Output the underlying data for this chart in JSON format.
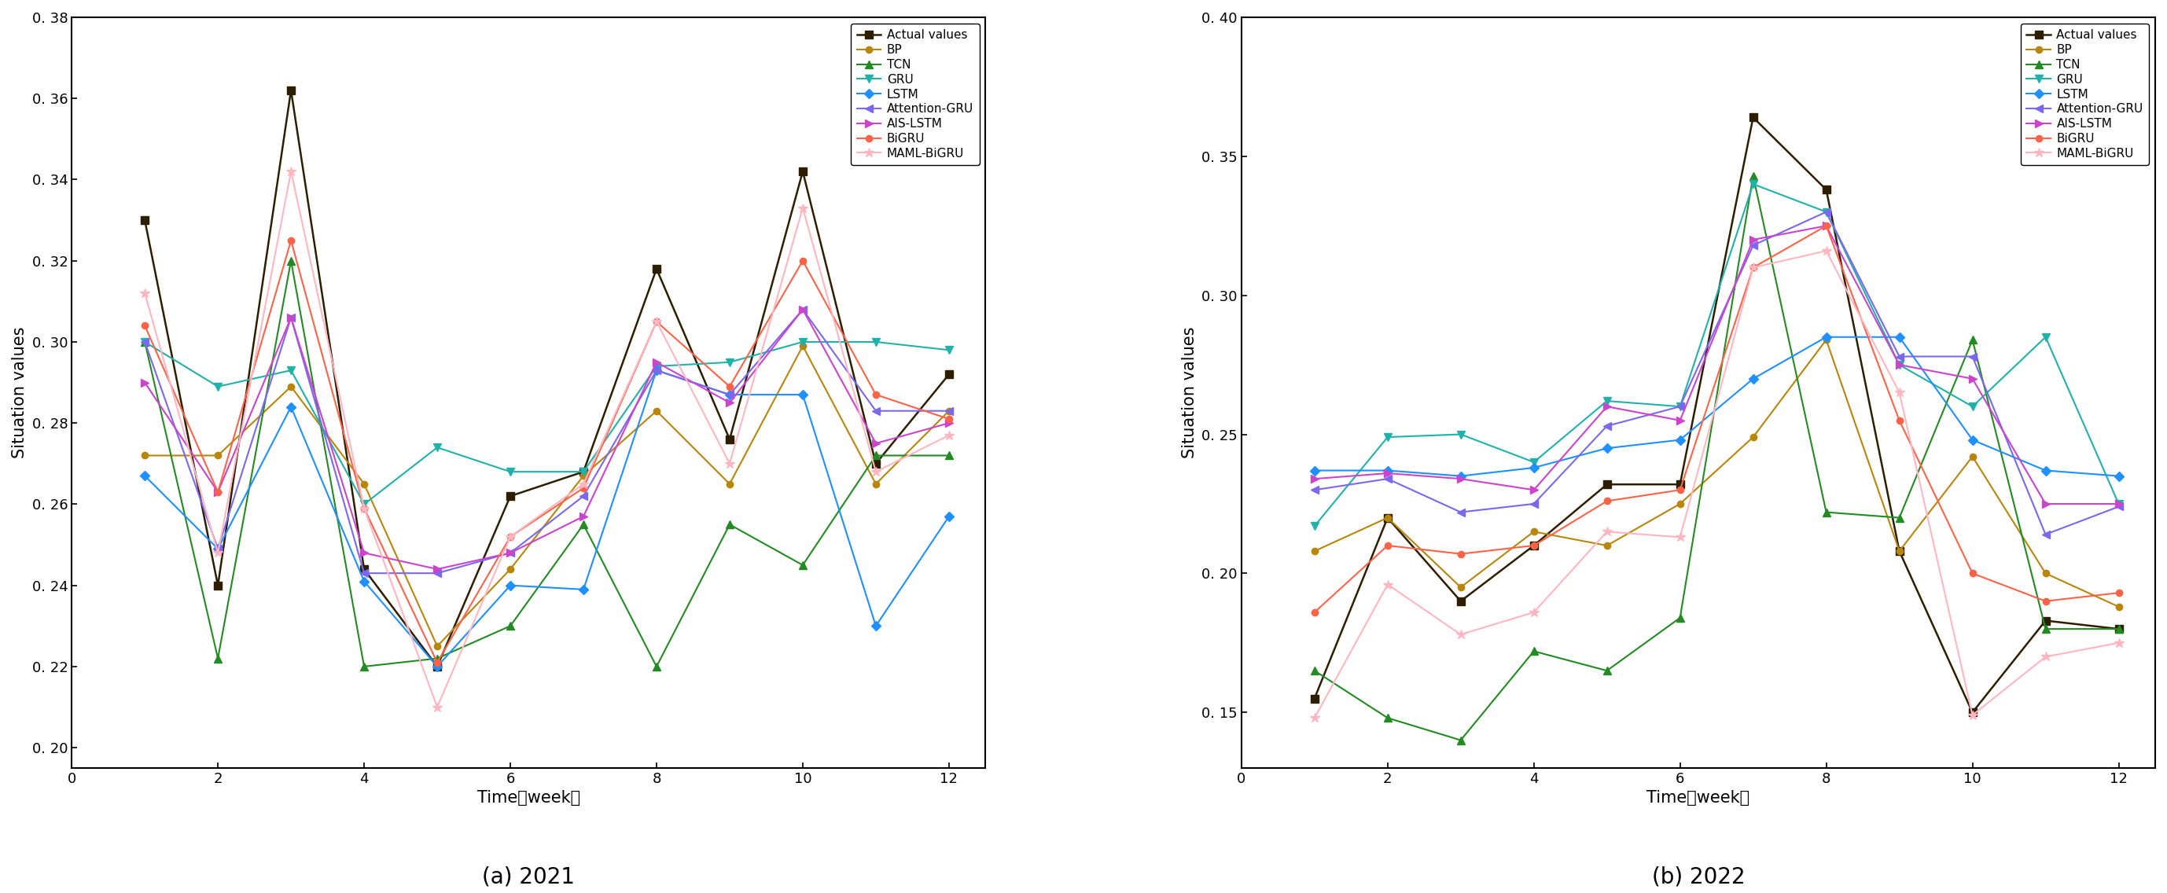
{
  "x": [
    1,
    2,
    3,
    4,
    5,
    6,
    7,
    8,
    9,
    10,
    11,
    12
  ],
  "panel_a": {
    "title": "(a) 2021",
    "ylim": [
      0.195,
      0.38
    ],
    "yticks": [
      0.2,
      0.22,
      0.24,
      0.26,
      0.28,
      0.3,
      0.32,
      0.34,
      0.36,
      0.38
    ],
    "series": {
      "Actual values": [
        0.33,
        0.24,
        0.362,
        0.244,
        0.22,
        0.262,
        0.268,
        0.318,
        0.276,
        0.342,
        0.27,
        0.292
      ],
      "BP": [
        0.272,
        0.272,
        0.289,
        0.265,
        0.225,
        0.244,
        0.267,
        0.283,
        0.265,
        0.299,
        0.265,
        0.283
      ],
      "TCN": [
        0.3,
        0.222,
        0.32,
        0.22,
        0.222,
        0.23,
        0.255,
        0.22,
        0.255,
        0.245,
        0.272,
        0.272
      ],
      "GRU": [
        0.3,
        0.289,
        0.293,
        0.26,
        0.274,
        0.268,
        0.268,
        0.294,
        0.295,
        0.3,
        0.3,
        0.298
      ],
      "LSTM": [
        0.267,
        0.249,
        0.284,
        0.241,
        0.22,
        0.24,
        0.239,
        0.293,
        0.287,
        0.287,
        0.23,
        0.257
      ],
      "Attention-GRU": [
        0.3,
        0.249,
        0.306,
        0.243,
        0.243,
        0.248,
        0.262,
        0.293,
        0.287,
        0.308,
        0.283,
        0.283
      ],
      "AIS-LSTM": [
        0.29,
        0.263,
        0.306,
        0.248,
        0.244,
        0.248,
        0.257,
        0.295,
        0.285,
        0.308,
        0.275,
        0.28
      ],
      "BiGRU": [
        0.304,
        0.263,
        0.325,
        0.259,
        0.221,
        0.252,
        0.264,
        0.305,
        0.289,
        0.32,
        0.287,
        0.281
      ],
      "MAML-BiGRU": [
        0.312,
        0.248,
        0.342,
        0.259,
        0.21,
        0.252,
        0.265,
        0.305,
        0.27,
        0.333,
        0.268,
        0.277
      ]
    }
  },
  "panel_b": {
    "title": "(b) 2022",
    "ylim": [
      0.13,
      0.4
    ],
    "yticks": [
      0.15,
      0.2,
      0.25,
      0.3,
      0.35,
      0.4
    ],
    "series": {
      "Actual values": [
        0.155,
        0.22,
        0.19,
        0.21,
        0.232,
        0.232,
        0.364,
        0.338,
        0.208,
        0.15,
        0.183,
        0.18
      ],
      "BP": [
        0.208,
        0.22,
        0.195,
        0.215,
        0.21,
        0.225,
        0.249,
        0.284,
        0.208,
        0.242,
        0.2,
        0.188
      ],
      "TCN": [
        0.165,
        0.148,
        0.14,
        0.172,
        0.165,
        0.184,
        0.343,
        0.222,
        0.22,
        0.284,
        0.18,
        0.18
      ],
      "GRU": [
        0.217,
        0.249,
        0.25,
        0.24,
        0.262,
        0.26,
        0.34,
        0.33,
        0.275,
        0.26,
        0.285,
        0.225
      ],
      "LSTM": [
        0.237,
        0.237,
        0.235,
        0.238,
        0.245,
        0.248,
        0.27,
        0.285,
        0.285,
        0.248,
        0.237,
        0.235
      ],
      "Attention-GRU": [
        0.23,
        0.234,
        0.222,
        0.225,
        0.253,
        0.26,
        0.318,
        0.33,
        0.278,
        0.278,
        0.214,
        0.224
      ],
      "AIS-LSTM": [
        0.234,
        0.236,
        0.234,
        0.23,
        0.26,
        0.255,
        0.32,
        0.325,
        0.275,
        0.27,
        0.225,
        0.225
      ],
      "BiGRU": [
        0.186,
        0.21,
        0.207,
        0.21,
        0.226,
        0.23,
        0.31,
        0.325,
        0.255,
        0.2,
        0.19,
        0.193
      ],
      "MAML-BiGRU": [
        0.148,
        0.196,
        0.178,
        0.186,
        0.215,
        0.213,
        0.31,
        0.316,
        0.265,
        0.149,
        0.17,
        0.175
      ]
    }
  },
  "series_styles": {
    "Actual values": {
      "color": "#2d1e00",
      "marker": "s",
      "linewidth": 1.8,
      "ms": 7
    },
    "BP": {
      "color": "#b8860b",
      "marker": "o",
      "linewidth": 1.5,
      "ms": 6
    },
    "TCN": {
      "color": "#228b22",
      "marker": "^",
      "linewidth": 1.5,
      "ms": 7
    },
    "GRU": {
      "color": "#20b2aa",
      "marker": "v",
      "linewidth": 1.5,
      "ms": 7
    },
    "LSTM": {
      "color": "#1e90ff",
      "marker": "D",
      "linewidth": 1.5,
      "ms": 6
    },
    "Attention-GRU": {
      "color": "#7b68ee",
      "marker": "<",
      "linewidth": 1.5,
      "ms": 7
    },
    "AIS-LSTM": {
      "color": "#cc44cc",
      "marker": ">",
      "linewidth": 1.5,
      "ms": 7
    },
    "BiGRU": {
      "color": "#ff6347",
      "marker": "o",
      "linewidth": 1.5,
      "ms": 6
    },
    "MAML-BiGRU": {
      "color": "#ffb6c1",
      "marker": "*",
      "linewidth": 1.5,
      "ms": 9
    }
  },
  "xticks": [
    0,
    2,
    4,
    6,
    8,
    10,
    12
  ],
  "xlim": [
    0,
    12.5
  ]
}
